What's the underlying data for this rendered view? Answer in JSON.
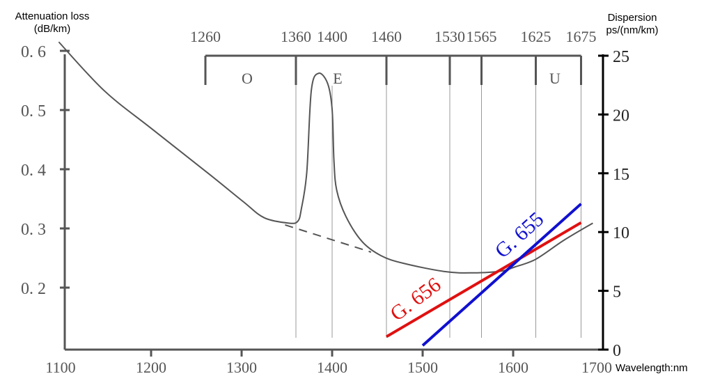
{
  "chart_data": {
    "type": "line",
    "left_axis": {
      "title_line1": "Attenuation loss",
      "title_line2": "(dB/km)",
      "ticks": [
        0.2,
        0.3,
        0.4,
        0.5,
        0.6
      ],
      "tick_labels": [
        "0.2",
        "0.3",
        "0.4",
        "0.5",
        "0.6"
      ],
      "ylim": [
        0.095,
        0.62
      ]
    },
    "right_axis": {
      "title_line1": "Dispersion",
      "title_line2": "ps/(nm/km)",
      "ticks": [
        0,
        5,
        10,
        15,
        20,
        25
      ],
      "tick_labels": [
        "0",
        "5",
        "10",
        "15",
        "20",
        "25"
      ],
      "ylim": [
        0,
        25
      ]
    },
    "x_axis": {
      "label": "Wavelength:nm",
      "ticks": [
        1100,
        1200,
        1300,
        1400,
        1500,
        1600,
        1700
      ],
      "tick_labels": [
        "1100",
        "1200",
        "1300",
        "1400",
        "1500",
        "1600",
        "1700"
      ],
      "xlim": [
        1105,
        1700
      ]
    },
    "bands": {
      "boundaries": [
        1260,
        1360,
        1460,
        1530,
        1565,
        1625,
        1675
      ],
      "boundary_labels": [
        "1260",
        "1360",
        "1400",
        "1460",
        "1530",
        "1565",
        "1625",
        "1675"
      ],
      "boundary_label_values": [
        1260,
        1360,
        1400,
        1460,
        1530,
        1565,
        1625,
        1675
      ],
      "names": [
        {
          "label": "O",
          "center": 1310
        },
        {
          "label": "E",
          "center": 1410
        },
        {
          "label": "U",
          "center": 1650
        }
      ]
    },
    "grid_lines_x": [
      1360,
      1400,
      1460,
      1530,
      1565,
      1625,
      1675
    ],
    "series": [
      {
        "axis": "left",
        "color": "#555555",
        "style": "solid",
        "x": [
          1098,
          1148,
          1201,
          1264,
          1302,
          1325,
          1352,
          1362,
          1366,
          1372,
          1377,
          1385,
          1395,
          1400,
          1402,
          1405,
          1415,
          1433,
          1454,
          1479,
          1525,
          1556,
          1587,
          1602,
          1625,
          1656,
          1688
        ],
        "y": [
          0.615,
          0.533,
          0.468,
          0.392,
          0.345,
          0.318,
          0.309,
          0.312,
          0.333,
          0.395,
          0.533,
          0.562,
          0.545,
          0.501,
          0.415,
          0.365,
          0.321,
          0.278,
          0.254,
          0.241,
          0.227,
          0.225,
          0.228,
          0.235,
          0.248,
          0.28,
          0.309
        ]
      },
      {
        "axis": "left",
        "color": "#555555",
        "style": "dashed",
        "x": [
          1348,
          1443
        ],
        "y": [
          0.306,
          0.26
        ]
      },
      {
        "axis": "right",
        "name": "G. 656",
        "color": "#e01010",
        "x": [
          1460,
          1675
        ],
        "y": [
          1.1,
          10.8
        ]
      },
      {
        "axis": "right",
        "name": "G. 655",
        "color": "#1010d0",
        "x": [
          1500,
          1675
        ],
        "y": [
          0.35,
          12.4
        ]
      }
    ],
    "grid": false
  }
}
